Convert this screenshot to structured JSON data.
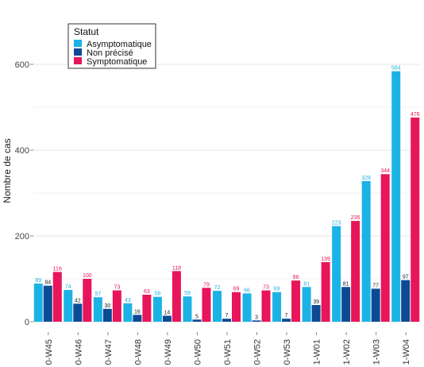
{
  "chart_data": {
    "type": "bar",
    "title": "",
    "xlabel": "",
    "ylabel": "Nombre de cas",
    "ylim": [
      0,
      650
    ],
    "yticks": [
      0,
      200,
      400,
      600
    ],
    "grid": true,
    "legend_position": "top-left",
    "legend_title": "Statut",
    "categories": [
      "0-W45",
      "0-W46",
      "0-W47",
      "0-W48",
      "0-W49",
      "0-W50",
      "0-W51",
      "0-W52",
      "0-W53",
      "1-W01",
      "1-W02",
      "1-W03",
      "1-W04"
    ],
    "series": [
      {
        "name": "Asymptomatique",
        "color": "#1bb3e6",
        "label_color": "#1bb3e6",
        "values": [
          89,
          74,
          57,
          43,
          58,
          59,
          72,
          66,
          69,
          81,
          223,
          328,
          584
        ]
      },
      {
        "name": "Non précisé",
        "color": "#0d4a94",
        "label_color": "#222222",
        "values": [
          84,
          42,
          30,
          16,
          14,
          5,
          7,
          3,
          7,
          39,
          81,
          77,
          97
        ]
      },
      {
        "name": "Symptomatique",
        "color": "#e8155a",
        "label_color": "#e8155a",
        "values": [
          116,
          100,
          73,
          63,
          118,
          79,
          69,
          73,
          96,
          139,
          235,
          344,
          476
        ]
      }
    ]
  }
}
